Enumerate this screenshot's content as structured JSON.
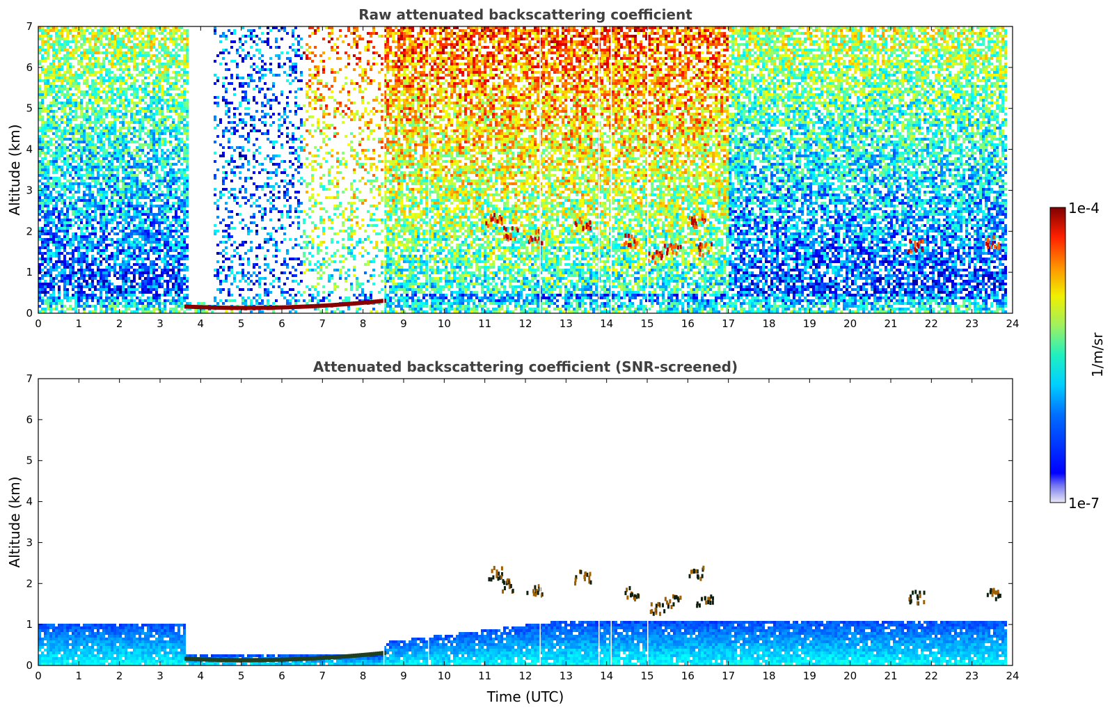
{
  "chart_data": [
    {
      "type": "heatmap",
      "title": "Raw attenuated backscattering coefficient",
      "xlabel": "",
      "ylabel": "Altitude (km)",
      "xlim": [
        0,
        24
      ],
      "ylim": [
        0,
        7
      ],
      "x_ticks": [
        "0",
        "1",
        "2",
        "3",
        "4",
        "5",
        "6",
        "7",
        "8",
        "9",
        "10",
        "11",
        "12",
        "13",
        "14",
        "15",
        "16",
        "17",
        "18",
        "19",
        "20",
        "21",
        "22",
        "23",
        "24"
      ],
      "y_ticks": [
        "0",
        "1",
        "2",
        "3",
        "4",
        "5",
        "6",
        "7"
      ],
      "data_end_hour": 23.8,
      "features": [
        {
          "kind": "boundary_layer",
          "x": [
            0,
            24
          ],
          "y": [
            0,
            0.6
          ]
        },
        {
          "kind": "low_cloud_fog",
          "x": [
            3.6,
            8.5
          ],
          "y": [
            0,
            0.3
          ]
        },
        {
          "kind": "clear_gap",
          "x": [
            3.7,
            4.3
          ],
          "y": [
            0.3,
            7
          ]
        },
        {
          "kind": "mid_cloud_fragments",
          "x": [
            11,
            17
          ],
          "y": [
            1.0,
            2.6
          ]
        },
        {
          "kind": "cloud_fragment",
          "x": [
            21.3,
            22
          ],
          "y": [
            1.6,
            1.8
          ]
        },
        {
          "kind": "cloud_fragment",
          "x": [
            23.3,
            23.6
          ],
          "y": [
            1.75,
            1.85
          ]
        }
      ]
    },
    {
      "type": "heatmap",
      "title": "Attenuated backscattering coefficient (SNR-screened)",
      "xlabel": "Time (UTC)",
      "ylabel": "Altitude (km)",
      "xlim": [
        0,
        24
      ],
      "ylim": [
        0,
        7
      ],
      "x_ticks": [
        "0",
        "1",
        "2",
        "3",
        "4",
        "5",
        "6",
        "7",
        "8",
        "9",
        "10",
        "11",
        "12",
        "13",
        "14",
        "15",
        "16",
        "17",
        "18",
        "19",
        "20",
        "21",
        "22",
        "23",
        "24"
      ],
      "y_ticks": [
        "0",
        "1",
        "2",
        "3",
        "4",
        "5",
        "6",
        "7"
      ],
      "data_end_hour": 23.8,
      "features": [
        {
          "kind": "boundary_layer",
          "x": [
            0,
            3.6
          ],
          "y": [
            0,
            1.05
          ]
        },
        {
          "kind": "aerosol_layer",
          "x": [
            0,
            1.2
          ],
          "y": [
            1.5,
            1.65
          ]
        },
        {
          "kind": "low_cloud_fog",
          "x": [
            3.6,
            8.5
          ],
          "y": [
            0,
            0.3
          ]
        },
        {
          "kind": "boundary_layer",
          "x": [
            8.5,
            24
          ],
          "y": [
            0,
            1.1
          ]
        },
        {
          "kind": "mid_cloud_fragments",
          "x": [
            11,
            17
          ],
          "y": [
            1.0,
            2.6
          ]
        },
        {
          "kind": "elevated_layer",
          "x": [
            17,
            23.8
          ],
          "y": [
            1.1,
            1.8
          ]
        }
      ]
    }
  ],
  "colorbar": {
    "label": "1/m/sr",
    "max_label": "1e-4",
    "min_label": "1e-7",
    "scale": "log",
    "colormap": "jet"
  }
}
